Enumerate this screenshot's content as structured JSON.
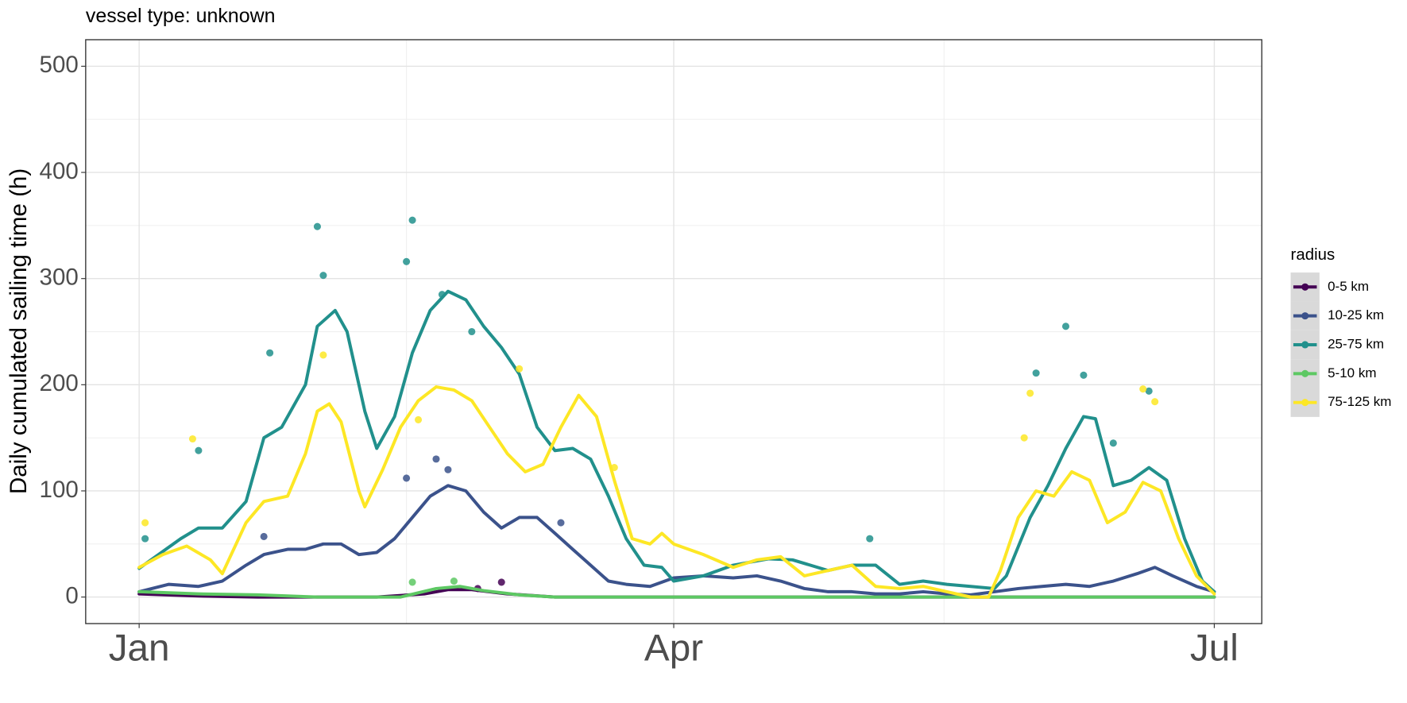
{
  "chart_data": {
    "type": "line",
    "title": "vessel type: unknown",
    "y_label": "Daily cumulated sailing time (h)",
    "legend_title": "radius",
    "legend_position": "right",
    "grid": true,
    "xlim": [
      -9,
      189
    ],
    "xticks": [
      {
        "value": 0,
        "label": "Jan"
      },
      {
        "value": 90,
        "label": "Apr"
      },
      {
        "value": 181,
        "label": "Jul"
      }
    ],
    "ylim": [
      -25,
      525
    ],
    "yticks": [
      0,
      100,
      200,
      300,
      400,
      500
    ],
    "series": [
      {
        "name": "0-5 km",
        "color": "#440154",
        "x": [
          0,
          10,
          20,
          30,
          40,
          48,
          52,
          56,
          62,
          70,
          90,
          120,
          150,
          181
        ],
        "values": [
          3,
          1,
          0,
          0,
          0,
          3,
          7,
          7,
          3,
          0,
          0,
          0,
          0,
          0
        ],
        "points": {
          "x": [
            61,
            57
          ],
          "values": [
            14,
            8
          ]
        }
      },
      {
        "name": "10-25 km",
        "color": "#3B528B",
        "x": [
          0,
          5,
          10,
          14,
          18,
          21,
          25,
          28,
          31,
          34,
          37,
          40,
          43,
          46,
          49,
          52,
          55,
          58,
          61,
          64,
          67,
          70,
          73,
          76,
          79,
          82,
          86,
          90,
          95,
          100,
          104,
          108,
          112,
          116,
          120,
          124,
          128,
          132,
          136,
          140,
          144,
          148,
          152,
          156,
          160,
          164,
          168,
          171,
          174,
          178,
          181
        ],
        "values": [
          5,
          12,
          10,
          15,
          30,
          40,
          45,
          45,
          50,
          50,
          40,
          42,
          55,
          75,
          95,
          105,
          100,
          80,
          65,
          75,
          75,
          60,
          45,
          30,
          15,
          12,
          10,
          18,
          20,
          18,
          20,
          15,
          8,
          5,
          5,
          3,
          3,
          5,
          3,
          2,
          5,
          8,
          10,
          12,
          10,
          15,
          22,
          28,
          20,
          10,
          5
        ],
        "points": {
          "x": [
            45,
            50,
            52,
            21,
            71
          ],
          "values": [
            112,
            130,
            120,
            57,
            70
          ]
        }
      },
      {
        "name": "25-75 km",
        "color": "#21908C",
        "x": [
          0,
          7,
          10,
          14,
          18,
          21,
          24,
          28,
          30,
          33,
          35,
          38,
          40,
          43,
          46,
          49,
          52,
          55,
          58,
          61,
          64,
          67,
          70,
          73,
          76,
          79,
          82,
          85,
          88,
          90,
          95,
          100,
          106,
          110,
          116,
          120,
          124,
          128,
          132,
          136,
          140,
          144,
          146,
          150,
          153,
          156,
          159,
          161,
          164,
          167,
          170,
          173,
          176,
          179,
          181
        ],
        "values": [
          27,
          55,
          65,
          65,
          90,
          150,
          160,
          200,
          255,
          270,
          250,
          175,
          140,
          170,
          230,
          270,
          288,
          280,
          255,
          235,
          210,
          160,
          138,
          140,
          130,
          95,
          55,
          30,
          28,
          15,
          20,
          30,
          36,
          35,
          25,
          30,
          30,
          12,
          15,
          12,
          10,
          8,
          20,
          75,
          105,
          140,
          170,
          168,
          105,
          110,
          122,
          110,
          55,
          15,
          5
        ],
        "points": {
          "x": [
            22,
            30,
            31,
            45,
            46,
            51,
            56,
            1,
            10,
            123,
            156,
            159,
            151,
            170,
            164
          ],
          "values": [
            230,
            349,
            303,
            316,
            355,
            285,
            250,
            55,
            138,
            55,
            255,
            209,
            211,
            194,
            145
          ]
        }
      },
      {
        "name": "5-10 km",
        "color": "#5DC863",
        "x": [
          0,
          10,
          20,
          30,
          44,
          50,
          54,
          58,
          64,
          70,
          181
        ],
        "values": [
          5,
          3,
          2,
          0,
          0,
          8,
          10,
          6,
          2,
          0,
          0
        ],
        "points": {
          "x": [
            46,
            53
          ],
          "values": [
            14,
            15
          ]
        }
      },
      {
        "name": "75-125 km",
        "color": "#FDE725",
        "x": [
          0,
          4,
          8,
          12,
          14,
          18,
          21,
          25,
          28,
          30,
          32,
          34,
          37,
          38,
          41,
          44,
          47,
          50,
          53,
          56,
          59,
          62,
          65,
          68,
          71,
          74,
          77,
          80,
          83,
          86,
          88,
          90,
          95,
          100,
          104,
          108,
          112,
          116,
          120,
          124,
          128,
          132,
          136,
          140,
          143,
          145,
          148,
          151,
          154,
          157,
          160,
          163,
          166,
          169,
          172,
          175,
          178,
          181
        ],
        "values": [
          28,
          40,
          48,
          35,
          22,
          70,
          90,
          95,
          135,
          175,
          182,
          165,
          100,
          85,
          120,
          160,
          185,
          198,
          195,
          185,
          160,
          135,
          118,
          125,
          160,
          190,
          170,
          110,
          55,
          50,
          60,
          50,
          40,
          28,
          35,
          38,
          20,
          25,
          30,
          10,
          8,
          10,
          5,
          0,
          0,
          25,
          75,
          100,
          95,
          118,
          110,
          70,
          80,
          108,
          100,
          55,
          20,
          3
        ],
        "points": {
          "x": [
            9,
            31,
            47,
            64,
            80,
            149,
            150,
            169,
            171,
            1
          ],
          "values": [
            149,
            228,
            167,
            215,
            122,
            150,
            192,
            196,
            184,
            70
          ]
        }
      }
    ]
  }
}
